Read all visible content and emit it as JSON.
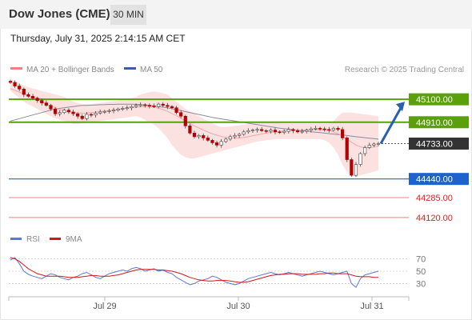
{
  "header": {
    "title": "Dow Jones (CME)",
    "interval": "30 MIN",
    "datetime": "Thursday, July 31, 2025 2:14:15 AM CET"
  },
  "legend": {
    "items": [
      {
        "label": "MA 20 + Bollinger Bands",
        "color": "#f08080"
      },
      {
        "label": "MA 50",
        "color": "#3a5fa8"
      }
    ],
    "credit": "Research © 2025 Trading Central"
  },
  "colors": {
    "resistance": "#5aa00a",
    "pivot": "#1e62d0",
    "support": "#f08080",
    "current": "#333333",
    "candle_up": "#7a7a7a",
    "candle_down": "#b50000",
    "bollinger_fill": "#fbdcdc",
    "ma50": "#8a8aa0",
    "rsi": "#5a78d8",
    "rsi_ma": "#d01818",
    "arrow": "#2a5eb0"
  },
  "chart_data": [
    {
      "type": "candlestick",
      "title": "Dow Jones (CME)",
      "ylim": [
        44040,
        45260
      ],
      "x_tick_labels": [
        "Jul 29",
        "Jul 30",
        "Jul 31"
      ],
      "levels": [
        {
          "value": 45100.0,
          "label": "45100.00",
          "kind": "resistance"
        },
        {
          "value": 44910.0,
          "label": "44910.00",
          "kind": "resistance"
        },
        {
          "value": 44733.0,
          "label": "44733.00",
          "kind": "current"
        },
        {
          "value": 44440.0,
          "label": "44440.00",
          "kind": "pivot"
        },
        {
          "value": 44285.0,
          "label": "44285.00",
          "kind": "support"
        },
        {
          "value": 44120.0,
          "label": "44120.00",
          "kind": "support"
        }
      ],
      "close": [
        45240,
        45210,
        45185,
        45140,
        45125,
        45110,
        45090,
        45070,
        45050,
        45020,
        44980,
        44990,
        45010,
        44995,
        44980,
        44960,
        44940,
        44975,
        44970,
        44985,
        44995,
        45000,
        45005,
        45010,
        45020,
        45025,
        45030,
        45040,
        45050,
        45055,
        45050,
        45045,
        45040,
        45060,
        45050,
        45040,
        45030,
        44990,
        44960,
        44880,
        44820,
        44790,
        44800,
        44780,
        44760,
        44740,
        44720,
        44750,
        44770,
        44790,
        44800,
        44810,
        44830,
        44840,
        44845,
        44850,
        44840,
        44835,
        44845,
        44830,
        44825,
        44835,
        44850,
        44840,
        44830,
        44835,
        44845,
        44855,
        44860,
        44855,
        44850,
        44845,
        44860,
        44850,
        44780,
        44600,
        44470,
        44560,
        44650,
        44700,
        44720,
        44730,
        44733
      ],
      "ma20": [
        45190,
        45175,
        45160,
        45145,
        45125,
        45110,
        45090,
        45075,
        45060,
        45045,
        45030,
        45015,
        45005,
        44998,
        44992,
        44988,
        44985,
        44986,
        44990,
        44994,
        44998,
        45002,
        45006,
        45010,
        45015,
        45020,
        45026,
        45030,
        45034,
        45038,
        45040,
        45038,
        45034,
        45026,
        45015,
        45000,
        44983,
        44963,
        44943,
        44920,
        44900,
        44880,
        44862,
        44845,
        44830,
        44815,
        44803,
        44792,
        44785,
        44780,
        44778,
        44780,
        44784,
        44790,
        44797,
        44805,
        44813,
        44820,
        44826,
        44831,
        44835,
        44838,
        44841,
        44843,
        44845,
        44846,
        44847,
        44848,
        44849,
        44848,
        44845,
        44840,
        44830,
        44815,
        44795,
        44770,
        44745,
        44720,
        44705,
        44700,
        44702,
        44706,
        44712
      ],
      "bb_upper": [
        45270,
        45250,
        45230,
        45215,
        45200,
        45190,
        45180,
        45170,
        45160,
        45150,
        45140,
        45130,
        45120,
        45100,
        45080,
        45070,
        45060,
        45060,
        45060,
        45065,
        45070,
        45075,
        45080,
        45085,
        45090,
        45095,
        45100,
        45110,
        45120,
        45140,
        45150,
        45160,
        45165,
        45160,
        45150,
        45140,
        45110,
        45080,
        45050,
        45020,
        45000,
        44980,
        44960,
        44940,
        44920,
        44900,
        44880,
        44870,
        44870,
        44875,
        44880,
        44885,
        44890,
        44895,
        44900,
        44905,
        44910,
        44915,
        44915,
        44910,
        44905,
        44900,
        44900,
        44900,
        44900,
        44900,
        44900,
        44900,
        44900,
        44900,
        44900,
        44900,
        44920,
        44960,
        44990,
        44990,
        44990,
        44985,
        44980,
        44975,
        44970,
        44965,
        44960
      ],
      "bb_lower": [
        45170,
        45140,
        45110,
        45080,
        45060,
        45040,
        45020,
        45000,
        44980,
        44960,
        44945,
        44930,
        44920,
        44905,
        44895,
        44895,
        44900,
        44905,
        44910,
        44915,
        44920,
        44925,
        44930,
        44935,
        44940,
        44945,
        44950,
        44955,
        44960,
        44950,
        44930,
        44910,
        44890,
        44860,
        44820,
        44780,
        44720,
        44680,
        44640,
        44620,
        44610,
        44610,
        44620,
        44630,
        44640,
        44650,
        44660,
        44670,
        44680,
        44690,
        44700,
        44710,
        44720,
        44730,
        44740,
        44750,
        44755,
        44760,
        44765,
        44770,
        44770,
        44770,
        44770,
        44770,
        44770,
        44770,
        44770,
        44770,
        44770,
        44770,
        44760,
        44740,
        44700,
        44640,
        44560,
        44500,
        44470,
        44460,
        44470,
        44480,
        44490,
        44500,
        44510
      ],
      "ma50": [
        44920,
        44930,
        44940,
        44950,
        44960,
        44970,
        44980,
        44990,
        45000,
        45010,
        45020,
        45025,
        45030,
        45035,
        45040,
        45045,
        45050,
        45050,
        45052,
        45053,
        45055,
        45056,
        45058,
        45058,
        45059,
        45059,
        45060,
        45060,
        45058,
        45055,
        45052,
        45049,
        45045,
        45040,
        45035,
        45030,
        45022,
        45014,
        45006,
        44998,
        44990,
        44982,
        44974,
        44966,
        44958,
        44950,
        44944,
        44938,
        44932,
        44926,
        44920,
        44914,
        44908,
        44902,
        44896,
        44890,
        44884,
        44878,
        44872,
        44866,
        44860,
        44856,
        44852,
        44848,
        44844,
        44840,
        44836,
        44832,
        44828,
        44824,
        44820,
        44816,
        44812,
        44808,
        44804,
        44800,
        44795,
        44790,
        44786,
        44782,
        44778,
        44774,
        44770
      ]
    },
    {
      "type": "line",
      "title": "RSI",
      "ylim": [
        15,
        85
      ],
      "y_ticks": [
        70,
        50,
        30
      ],
      "series": [
        {
          "name": "RSI",
          "values": [
            68,
            72,
            62,
            50,
            45,
            42,
            40,
            38,
            42,
            46,
            44,
            40,
            38,
            36,
            40,
            42,
            46,
            48,
            44,
            40,
            38,
            42,
            46,
            48,
            50,
            52,
            50,
            54,
            56,
            54,
            50,
            52,
            54,
            50,
            52,
            48,
            46,
            40,
            36,
            32,
            28,
            30,
            34,
            36,
            38,
            42,
            40,
            36,
            32,
            30,
            28,
            30,
            34,
            38,
            40,
            42,
            44,
            46,
            48,
            46,
            44,
            46,
            48,
            46,
            44,
            42,
            44,
            46,
            48,
            50,
            48,
            46,
            44,
            46,
            48,
            50,
            30,
            24,
            38,
            44,
            46,
            48,
            50
          ]
        },
        {
          "name": "9MA",
          "values": [
            72,
            70,
            66,
            60,
            54,
            50,
            46,
            44,
            42,
            42,
            42,
            42,
            41,
            40,
            40,
            40,
            41,
            42,
            43,
            43,
            42,
            42,
            42,
            43,
            44,
            46,
            48,
            50,
            52,
            53,
            53,
            53,
            53,
            52,
            52,
            51,
            50,
            48,
            46,
            43,
            40,
            38,
            36,
            35,
            34,
            34,
            35,
            35,
            35,
            34,
            33,
            32,
            32,
            33,
            35,
            37,
            39,
            41,
            43,
            44,
            45,
            45,
            46,
            46,
            46,
            45,
            45,
            45,
            45,
            46,
            46,
            47,
            47,
            46,
            46,
            46,
            44,
            42,
            41,
            41,
            41,
            40,
            40
          ]
        }
      ]
    }
  ]
}
